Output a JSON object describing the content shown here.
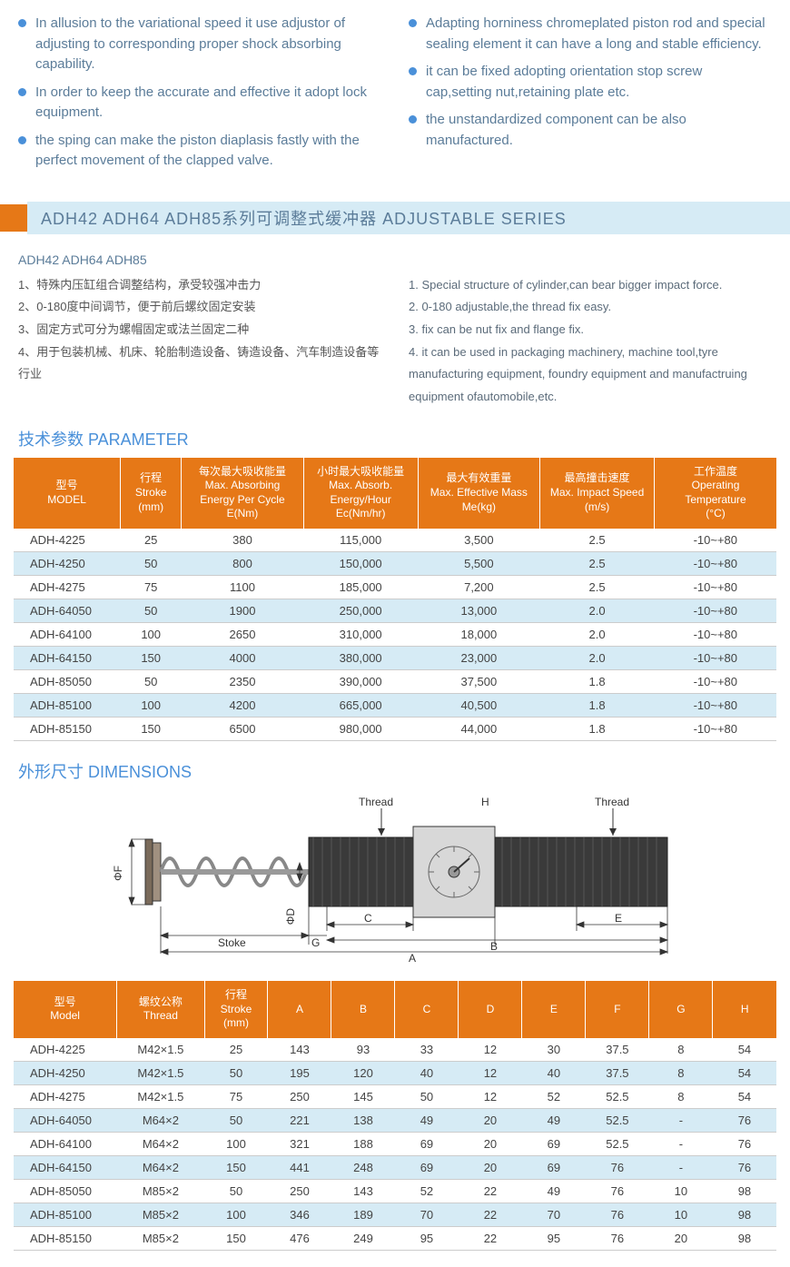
{
  "bullets_left": [
    "In allusion to the variational speed it use adjustor of adjusting to corresponding proper shock absorbing capability.",
    "In order to keep the accurate and effective it adopt lock equipment.",
    "the sping can make the piston diaplasis fastly with the perfect movement of the clapped valve."
  ],
  "bullets_right": [
    "Adapting horniness chromeplated piston rod and special sealing element it can have a long and stable efficiency.",
    "it can be fixed adopting orientation stop screw cap,setting nut,retaining plate etc.",
    "the unstandardized component can be also manufactured."
  ],
  "section_title": "ADH42   ADH64   ADH85系列可调整式缓冲器 ADJUSTABLE SERIES",
  "subhead": "ADH42   ADH64   ADH85",
  "notes_cn": [
    "1、特殊内压缸组合调整结构，承受较强冲击力",
    "2、0-180度中间调节，便于前后螺纹固定安装",
    "3、固定方式可分为螺帽固定或法兰固定二种",
    "4、用于包装机械、机床、轮胎制造设备、铸造设备、汽车制造设备等行业"
  ],
  "notes_en": [
    "1. Special structure of cylinder,can bear bigger impact force.",
    "2. 0-180 adjustable,the thread fix easy.",
    "3. fix can be nut fix and flange fix.",
    "4. it can be used in packaging machinery, machine tool,tyre manufacturing equipment,  foundry equipment and manufactruing equipment ofautomobile,etc."
  ],
  "param_heading": "技术参数 PARAMETER",
  "param_headers": [
    "型号\nMODEL",
    "行程\nStroke\n(mm)",
    "每次最大吸收能量\nMax. Absorbing\nEnergy Per Cycle\nE(Nm)",
    "小时最大吸收能量\nMax. Absorb.\nEnergy/Hour\nEc(Nm/hr)",
    "最大有效重量\nMax. Effective Mass\nMe(kg)",
    "最高撞击速度\nMax. Impact Speed\n(m/s)",
    "工作温度\nOperating\nTemperature\n(°C)"
  ],
  "param_rows": [
    [
      "ADH-4225",
      "25",
      "380",
      "115,000",
      "3,500",
      "2.5",
      "-10~+80"
    ],
    [
      "ADH-4250",
      "50",
      "800",
      "150,000",
      "5,500",
      "2.5",
      "-10~+80"
    ],
    [
      "ADH-4275",
      "75",
      "1100",
      "185,000",
      "7,200",
      "2.5",
      "-10~+80"
    ],
    [
      "ADH-64050",
      "50",
      "1900",
      "250,000",
      "13,000",
      "2.0",
      "-10~+80"
    ],
    [
      "ADH-64100",
      "100",
      "2650",
      "310,000",
      "18,000",
      "2.0",
      "-10~+80"
    ],
    [
      "ADH-64150",
      "150",
      "4000",
      "380,000",
      "23,000",
      "2.0",
      "-10~+80"
    ],
    [
      "ADH-85050",
      "50",
      "2350",
      "390,000",
      "37,500",
      "1.8",
      "-10~+80"
    ],
    [
      "ADH-85100",
      "100",
      "4200",
      "665,000",
      "40,500",
      "1.8",
      "-10~+80"
    ],
    [
      "ADH-85150",
      "150",
      "6500",
      "980,000",
      "44,000",
      "1.8",
      "-10~+80"
    ]
  ],
  "dim_heading": "外形尺寸 DIMENSIONS",
  "dim_headers": [
    "型号\nModel",
    "螺纹公称\nThread",
    "行程\nStroke\n(mm)",
    "A",
    "B",
    "C",
    "D",
    "E",
    "F",
    "G",
    "H"
  ],
  "dim_rows": [
    [
      "ADH-4225",
      "M42×1.5",
      "25",
      "143",
      "93",
      "33",
      "12",
      "30",
      "37.5",
      "8",
      "54"
    ],
    [
      "ADH-4250",
      "M42×1.5",
      "50",
      "195",
      "120",
      "40",
      "12",
      "40",
      "37.5",
      "8",
      "54"
    ],
    [
      "ADH-4275",
      "M42×1.5",
      "75",
      "250",
      "145",
      "50",
      "12",
      "52",
      "52.5",
      "8",
      "54"
    ],
    [
      "ADH-64050",
      "M64×2",
      "50",
      "221",
      "138",
      "49",
      "20",
      "49",
      "52.5",
      "-",
      "76"
    ],
    [
      "ADH-64100",
      "M64×2",
      "100",
      "321",
      "188",
      "69",
      "20",
      "69",
      "52.5",
      "-",
      "76"
    ],
    [
      "ADH-64150",
      "M64×2",
      "150",
      "441",
      "248",
      "69",
      "20",
      "69",
      "76",
      "-",
      "76"
    ],
    [
      "ADH-85050",
      "M85×2",
      "50",
      "250",
      "143",
      "52",
      "22",
      "49",
      "76",
      "10",
      "98"
    ],
    [
      "ADH-85100",
      "M85×2",
      "100",
      "346",
      "189",
      "70",
      "22",
      "70",
      "76",
      "10",
      "98"
    ],
    [
      "ADH-85150",
      "M85×2",
      "150",
      "476",
      "249",
      "95",
      "22",
      "95",
      "76",
      "20",
      "98"
    ]
  ],
  "diagram_labels": {
    "thread1": "Thread",
    "thread2": "Thread",
    "h": "H",
    "phiF": "ΦF",
    "phiD": "ΦD",
    "stoke": "Stoke",
    "g": "G",
    "c": "C",
    "b": "B",
    "e": "E",
    "a": "A"
  },
  "colors": {
    "accent": "#e67817",
    "blue": "#4a90d9",
    "pale": "#d6ebf5",
    "text": "#5b7c99"
  }
}
